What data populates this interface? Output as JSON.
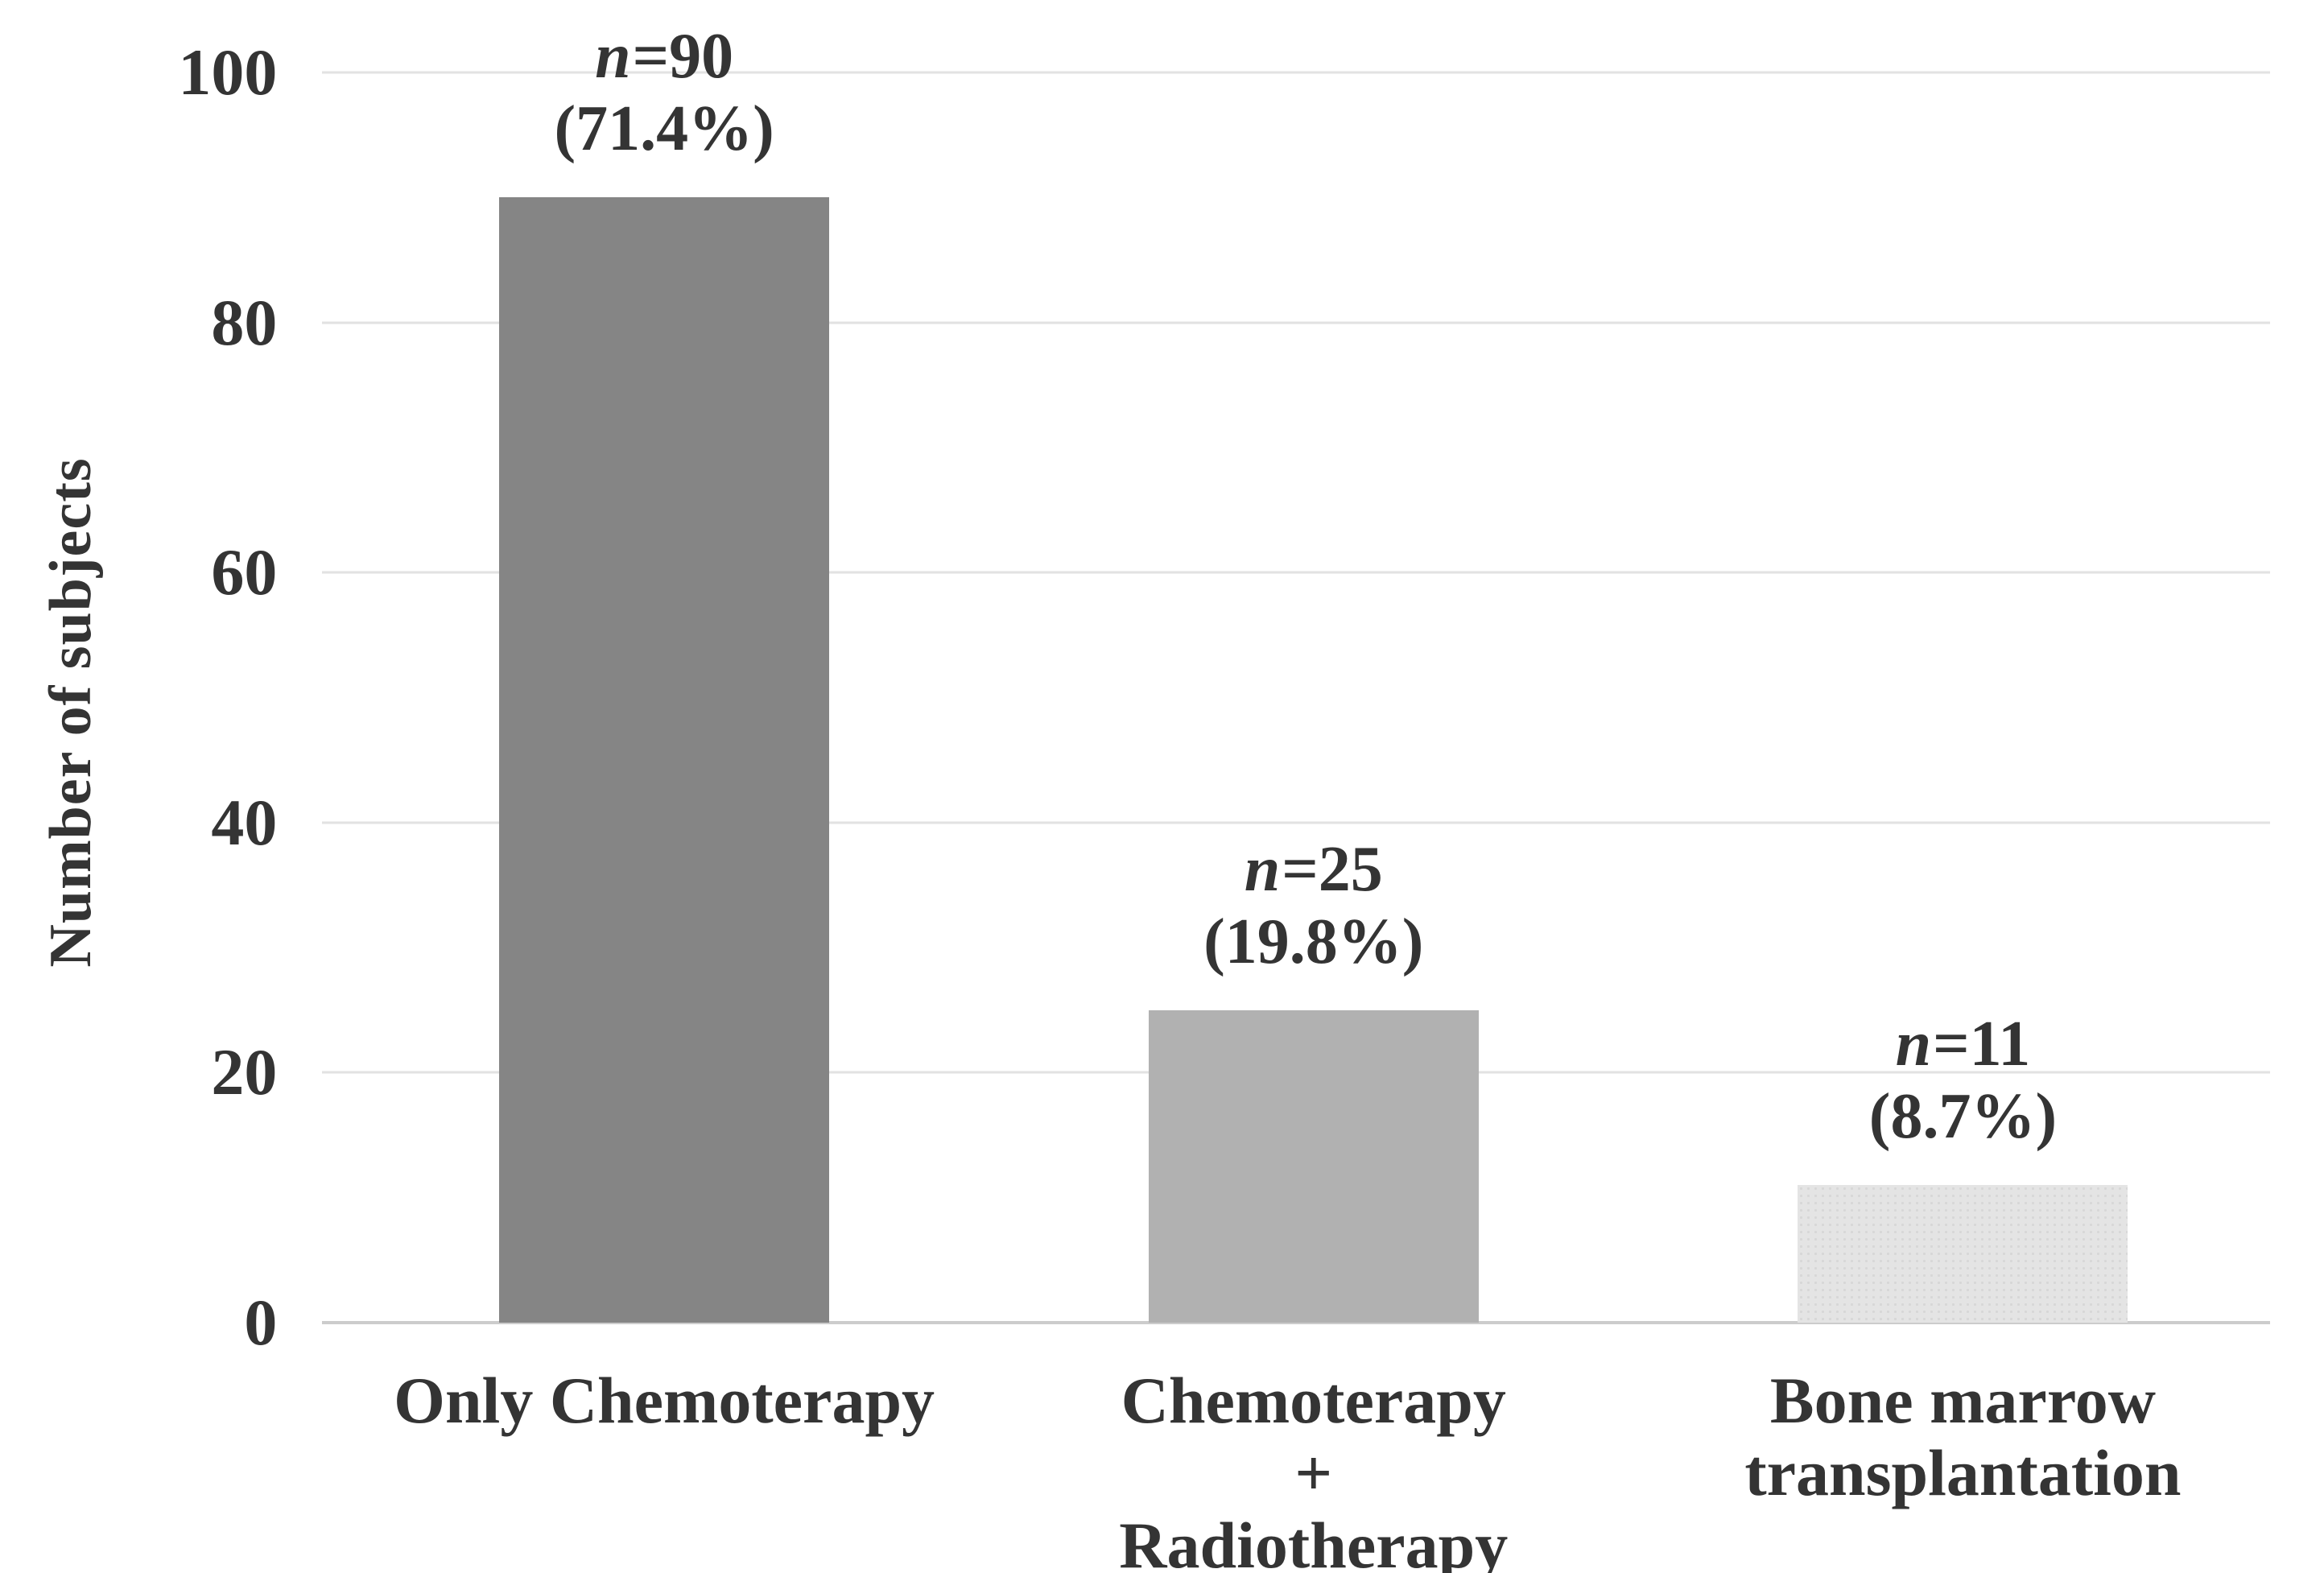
{
  "chart_data": {
    "type": "bar",
    "title": "",
    "xlabel": "",
    "ylabel": "Number of subjects",
    "ylim": [
      0,
      100
    ],
    "yticks": [
      0,
      20,
      40,
      60,
      80,
      100
    ],
    "grid": "horizontal gridlines at each y tick, no vertical axis line",
    "legend": "none",
    "categories": [
      "Only Chemoterapy",
      "Chemoterapy + Radiotherapy",
      "Bone marrow transplantation"
    ],
    "category_label_lines": [
      [
        "Only Chemoterapy"
      ],
      [
        "Chemoterapy",
        "+",
        "Radiotherapy"
      ],
      [
        "Bone marrow",
        "transplantation"
      ]
    ],
    "series": [
      {
        "name": "Number of subjects",
        "values": [
          90,
          25,
          11
        ]
      }
    ],
    "bar_annotations": [
      {
        "italic_prefix": "n",
        "count_text": "=90",
        "percent_text": "(71.4%)"
      },
      {
        "italic_prefix": "n",
        "count_text": "=25",
        "percent_text": "(19.8%)"
      },
      {
        "italic_prefix": "n",
        "count_text": "=11",
        "percent_text": "(8.7%)"
      }
    ],
    "bar_colors": [
      "#858585",
      "#b1b1b1",
      "#e4e4e4"
    ],
    "bar_pattern_note": "third bar is a very light gray with a faint dotted fill pattern",
    "gridline_color": "#e2e2e2",
    "axis_line_color": "#cccccc",
    "text_color": "#343434",
    "background_color": "#ffffff"
  }
}
